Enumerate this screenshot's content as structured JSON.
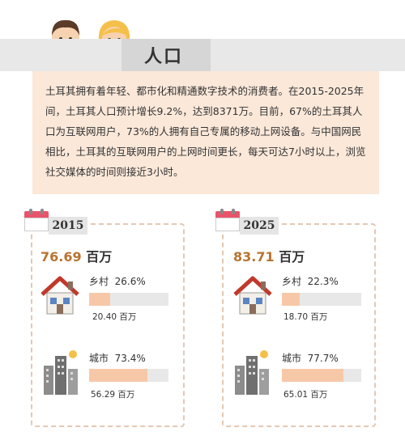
{
  "header": {
    "title": "人口"
  },
  "intro": {
    "text": "土耳其拥有着年轻、都市化和精通数字技术的消费者。在2015-2025年间，土耳其人口预计增长9.2%，达到8371万。目前，67%的土耳其人口为互联网用户，73%的人拥有自己专属的移动上网设备。与中国网民相比，土耳其的互联网用户的上网时间更长，每天可达7小时以上，浏览社交媒体的时间则接近3小时。"
  },
  "colors": {
    "accent": "#b8742f",
    "bar_fill": "#f7c8a8",
    "bar_track": "#e8e8e8",
    "intro_bg": "#fbe8d9",
    "border": "#e4c8b4"
  },
  "chart_data": [
    {
      "type": "bar",
      "year": "2015",
      "total_value": "76.69",
      "total_unit": "百万",
      "categories": [
        "乡村",
        "城市"
      ],
      "percent_labels": [
        "26.6%",
        "73.4%"
      ],
      "values": [
        26.6,
        73.4
      ],
      "sub_values": [
        "20.40 百万",
        "56.29 百万"
      ]
    },
    {
      "type": "bar",
      "year": "2025",
      "total_value": "83.71",
      "total_unit": "百万",
      "categories": [
        "乡村",
        "城市"
      ],
      "percent_labels": [
        "22.3%",
        "77.7%"
      ],
      "values": [
        22.3,
        77.7
      ],
      "sub_values": [
        "18.70 百万",
        "65.01 百万"
      ]
    }
  ]
}
